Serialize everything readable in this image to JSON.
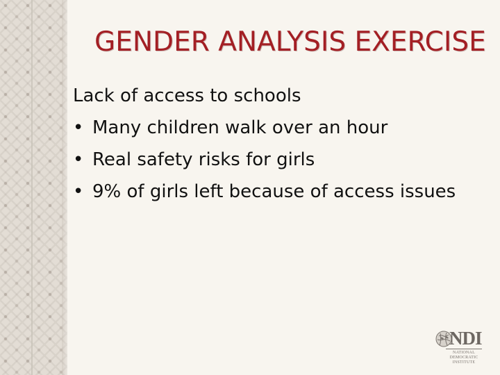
{
  "slide": {
    "title": "GENDER ANALYSIS EXERCISE",
    "lead": "Lack of access to schools",
    "bullet_mark": "•",
    "bullets": [
      "Many children walk over an hour",
      "Real safety risks for girls",
      "9% of girls left because of access issues"
    ]
  },
  "logo": {
    "name": "NDI",
    "subtitle_lines": [
      "NATIONAL",
      "DEMOCRATIC",
      "INSTITUTE"
    ],
    "icon": "globe-icon"
  },
  "colors": {
    "title": "#a31f24",
    "body_text": "#111111",
    "background": "#f8f5ef",
    "side_band": "#e3ddd5"
  }
}
